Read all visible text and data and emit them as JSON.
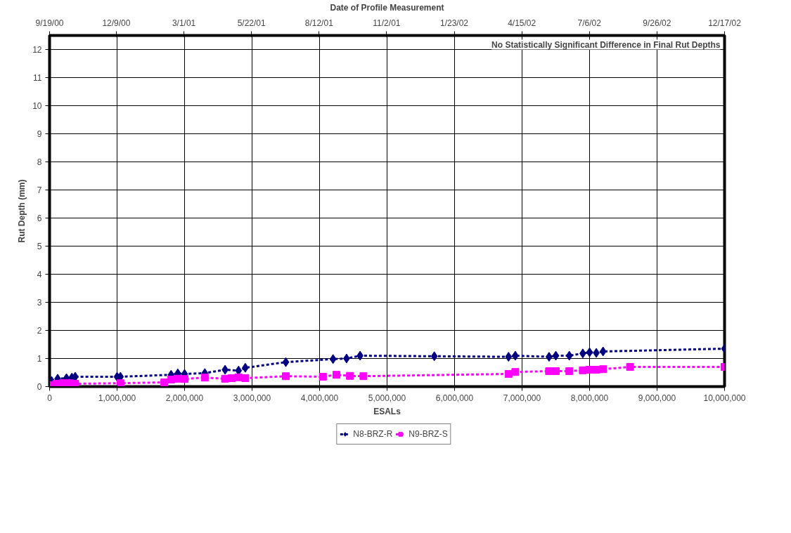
{
  "chart_data": {
    "type": "line",
    "xlabel": "ESALs",
    "ylabel": "Rut Depth (mm)",
    "x2label": "Date of Profile Measurement",
    "annotations": [
      "No Statistically Significant Difference in Final Rut Depths"
    ],
    "xlim": [
      0,
      10000000
    ],
    "xticks": [
      {
        "value": 0,
        "label": "0"
      },
      {
        "value": 1000000,
        "label": "1,000,000"
      },
      {
        "value": 2000000,
        "label": "2,000,000"
      },
      {
        "value": 3000000,
        "label": "3,000,000"
      },
      {
        "value": 4000000,
        "label": "4,000,000"
      },
      {
        "value": 5000000,
        "label": "5,000,000"
      },
      {
        "value": 6000000,
        "label": "6,000,000"
      },
      {
        "value": 7000000,
        "label": "7,000,000"
      },
      {
        "value": 8000000,
        "label": "8,000,000"
      },
      {
        "value": 9000000,
        "label": "9,000,000"
      },
      {
        "value": 10000000,
        "label": "10,000,000"
      }
    ],
    "x2lim": [
      "2000-09-19",
      "2002-12-17"
    ],
    "x2ticks": [
      {
        "value": "2000-09-19",
        "label": "9/19/00"
      },
      {
        "value": "2000-12-09",
        "label": "12/9/00"
      },
      {
        "value": "2001-03-01",
        "label": "3/1/01"
      },
      {
        "value": "2001-05-22",
        "label": "5/22/01"
      },
      {
        "value": "2001-08-12",
        "label": "8/12/01"
      },
      {
        "value": "2001-11-02",
        "label": "11/2/01"
      },
      {
        "value": "2002-01-23",
        "label": "1/23/02"
      },
      {
        "value": "2002-04-15",
        "label": "4/15/02"
      },
      {
        "value": "2002-07-06",
        "label": "7/6/02"
      },
      {
        "value": "2002-09-26",
        "label": "9/26/02"
      },
      {
        "value": "2002-12-17",
        "label": "12/17/02"
      }
    ],
    "ylim": [
      0,
      12.5
    ],
    "yticks": [
      0,
      1,
      2,
      3,
      4,
      5,
      6,
      7,
      8,
      9,
      10,
      11,
      12
    ],
    "grid": true,
    "legend": "bottom",
    "line_style": "dashed",
    "series": [
      {
        "name": "N8-BRZ-R",
        "color": "#000080",
        "marker": "diamond",
        "x": [
          30000,
          120000,
          250000,
          330000,
          380000,
          1000000,
          1050000,
          1800000,
          1900000,
          2000000,
          2300000,
          2600000,
          2800000,
          2900000,
          3500000,
          4200000,
          4400000,
          4600000,
          5700000,
          6800000,
          6900000,
          7400000,
          7500000,
          7700000,
          7900000,
          8000000,
          8100000,
          8200000,
          10000000
        ],
        "values": [
          0.2,
          0.28,
          0.3,
          0.32,
          0.35,
          0.35,
          0.35,
          0.42,
          0.47,
          0.45,
          0.48,
          0.6,
          0.57,
          0.67,
          0.87,
          0.98,
          1.0,
          1.1,
          1.08,
          1.06,
          1.1,
          1.06,
          1.1,
          1.1,
          1.18,
          1.22,
          1.2,
          1.25,
          1.35
        ]
      },
      {
        "name": "N9-BRZ-S",
        "color": "#ff00ff",
        "marker": "square",
        "x": [
          0,
          50000,
          100000,
          200000,
          300000,
          380000,
          1050000,
          1700000,
          1800000,
          1900000,
          2000000,
          2300000,
          2600000,
          2700000,
          2800000,
          2900000,
          3500000,
          4050000,
          4250000,
          4450000,
          4650000,
          6800000,
          6900000,
          7400000,
          7500000,
          7700000,
          7900000,
          8000000,
          8100000,
          8200000,
          8600000,
          10000000
        ],
        "values": [
          0.0,
          0.05,
          0.1,
          0.12,
          0.12,
          0.1,
          0.12,
          0.15,
          0.25,
          0.28,
          0.27,
          0.32,
          0.28,
          0.3,
          0.33,
          0.3,
          0.37,
          0.35,
          0.42,
          0.38,
          0.37,
          0.45,
          0.52,
          0.55,
          0.55,
          0.55,
          0.58,
          0.6,
          0.6,
          0.62,
          0.7,
          0.7
        ]
      }
    ]
  }
}
